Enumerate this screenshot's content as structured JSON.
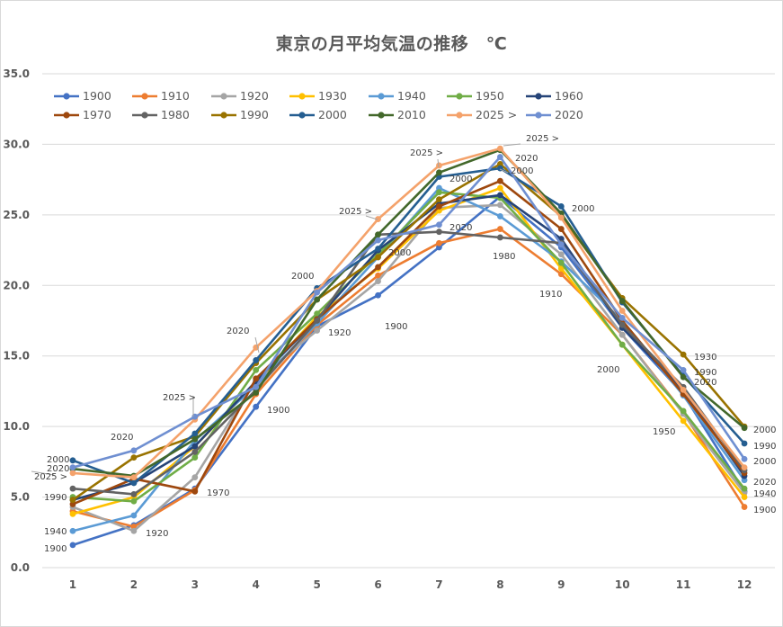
{
  "chart_data": {
    "type": "line",
    "title": "東京の月平均気温の推移　℃",
    "categories": [
      "1",
      "2",
      "3",
      "4",
      "5",
      "6",
      "7",
      "8",
      "9",
      "10",
      "11",
      "12"
    ],
    "ylim": [
      0,
      35
    ],
    "yticks": [
      "0.0",
      "5.0",
      "10.0",
      "15.0",
      "20.0",
      "25.0",
      "30.0",
      "35.0"
    ],
    "grid": true,
    "legend_position": "top",
    "series": [
      {
        "name": "1900",
        "color": "#4472c4",
        "values": [
          1.6,
          3.0,
          5.6,
          11.4,
          17.1,
          19.3,
          22.7,
          26.3,
          22.7,
          17.0,
          12.3,
          5.4
        ]
      },
      {
        "name": "1910",
        "color": "#ed7d31",
        "values": [
          4.0,
          2.9,
          5.5,
          12.3,
          17.2,
          20.7,
          23.0,
          24.0,
          20.8,
          16.5,
          11.0,
          4.3
        ]
      },
      {
        "name": "1920",
        "color": "#a5a5a5",
        "values": [
          4.3,
          2.6,
          6.4,
          13.3,
          16.8,
          20.3,
          25.5,
          25.7,
          22.2,
          16.5,
          10.9,
          5.3
        ]
      },
      {
        "name": "1930",
        "color": "#ffc000",
        "values": [
          3.8,
          5.0,
          8.6,
          13.1,
          17.8,
          21.2,
          25.3,
          26.9,
          21.2,
          15.8,
          10.4,
          5.0
        ]
      },
      {
        "name": "1940",
        "color": "#5b9bd5",
        "values": [
          2.6,
          3.7,
          9.0,
          12.9,
          17.3,
          22.0,
          26.9,
          24.9,
          21.7,
          17.5,
          12.2,
          6.2
        ]
      },
      {
        "name": "1950",
        "color": "#70ad47",
        "values": [
          5.0,
          4.7,
          7.8,
          14.0,
          18.0,
          22.2,
          26.6,
          26.2,
          21.6,
          15.8,
          11.1,
          5.6
        ]
      },
      {
        "name": "1960",
        "color": "#264478",
        "values": [
          4.8,
          6.0,
          8.6,
          13.2,
          17.6,
          22.5,
          25.8,
          26.4,
          23.3,
          17.0,
          12.6,
          6.5
        ]
      },
      {
        "name": "1970",
        "color": "#9e480e",
        "values": [
          4.5,
          6.3,
          5.4,
          13.4,
          17.6,
          21.3,
          25.6,
          27.4,
          24.0,
          17.5,
          12.3,
          6.7
        ]
      },
      {
        "name": "1980",
        "color": "#636363",
        "values": [
          5.6,
          5.2,
          8.2,
          12.6,
          17.5,
          23.6,
          23.8,
          23.4,
          23.0,
          17.2,
          12.8,
          6.9
        ]
      },
      {
        "name": "1990",
        "color": "#997300",
        "values": [
          4.8,
          7.8,
          9.3,
          14.5,
          19.0,
          22.0,
          26.1,
          28.6,
          24.9,
          19.1,
          15.1,
          10.0
        ]
      },
      {
        "name": "2000",
        "color": "#255e91",
        "values": [
          7.6,
          6.0,
          9.5,
          14.7,
          19.8,
          22.6,
          27.7,
          28.3,
          25.6,
          18.8,
          13.6,
          8.8
        ]
      },
      {
        "name": "2010",
        "color": "#43682b",
        "values": [
          7.0,
          6.5,
          9.1,
          12.4,
          19.0,
          23.6,
          28.0,
          29.6,
          25.1,
          18.9,
          13.5,
          9.9
        ]
      },
      {
        "name": "2025 >",
        "color": "#f4a26b",
        "values": [
          6.7,
          6.4,
          10.5,
          15.6,
          19.6,
          24.7,
          28.5,
          29.7,
          24.8,
          18.2,
          12.6,
          7.1
        ]
      },
      {
        "name": "2020",
        "color": "#6f8fd1",
        "values": [
          7.1,
          8.3,
          10.7,
          12.8,
          19.5,
          23.2,
          24.3,
          29.1,
          22.9,
          17.7,
          14.0,
          7.7
        ]
      }
    ],
    "annotations": [
      "2000",
      "2020",
      "2025 >",
      "1990",
      "1940",
      "1900",
      "1920",
      "2020",
      "1970",
      "2025 >",
      "2020",
      "1900",
      "2000",
      "1920",
      "2025 >",
      "2000",
      "1900",
      "2025 >",
      "2000",
      "2020",
      "2000",
      "2025 >",
      "2020",
      "2000",
      "1980",
      "1910",
      "2000",
      "1950",
      "1930",
      "1990",
      "2020",
      "2000",
      "1990",
      "2000",
      "2020",
      "1940",
      "1900",
      "1910"
    ]
  }
}
